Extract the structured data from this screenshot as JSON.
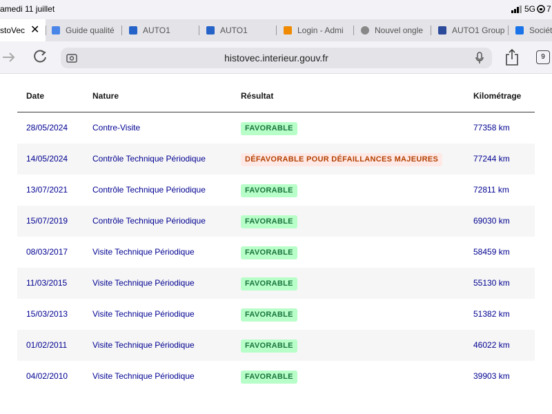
{
  "status_bar": {
    "date": "amedi 11 juillet",
    "network": "5G",
    "battery": "7"
  },
  "tabs": [
    "stoVec",
    "Guide qualité",
    "AUTO1",
    "AUTO1",
    "Login - Admi",
    "Nouvel ongle",
    "AUTO1 Group",
    "Sociét"
  ],
  "toolbar": {
    "url": "histovec.interieur.gouv.fr",
    "tab_count": "9"
  },
  "table": {
    "headers": [
      "Date",
      "Nature",
      "Résultat",
      "Kilométrage"
    ],
    "rows": [
      [
        "28/05/2024",
        "Contre-Visite",
        "FAVORABLE",
        "77358 km"
      ],
      [
        "14/05/2024",
        "Contrôle Technique Périodique",
        "DÉFAVORABLE POUR DÉFAILLANCES MAJEURES",
        "77244 km"
      ],
      [
        "13/07/2021",
        "Contrôle Technique Périodique",
        "FAVORABLE",
        "72811 km"
      ],
      [
        "15/07/2019",
        "Contrôle Technique Périodique",
        "FAVORABLE",
        "69030 km"
      ],
      [
        "08/03/2017",
        "Visite Technique Périodique",
        "FAVORABLE",
        "58459 km"
      ],
      [
        "11/03/2015",
        "Visite Technique Périodique",
        "FAVORABLE",
        "55130 km"
      ],
      [
        "15/03/2013",
        "Visite Technique Périodique",
        "FAVORABLE",
        "51382 km"
      ],
      [
        "01/02/2011",
        "Visite Technique Périodique",
        "FAVORABLE",
        "46022 km"
      ],
      [
        "04/02/2010",
        "Visite Technique Périodique",
        "FAVORABLE",
        "39903 km"
      ]
    ]
  }
}
